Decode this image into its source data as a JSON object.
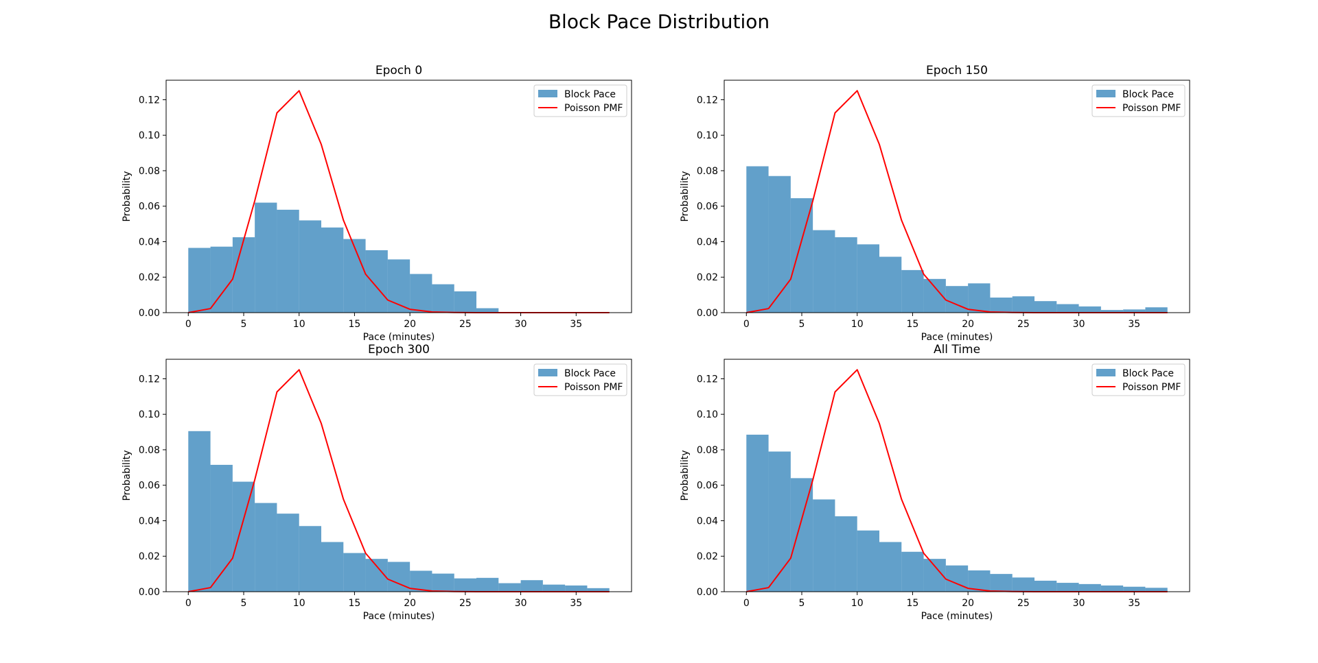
{
  "figure": {
    "title": "Block Pace Distribution"
  },
  "style": {
    "bar_color": "#1f77b4",
    "bar_alpha": 0.7,
    "line_color": "#ff0000",
    "background": "#ffffff",
    "axes_edge": "#000000"
  },
  "chart_data": [
    {
      "type": "bar",
      "title": "Epoch 0",
      "xlabel": "Pace (minutes)",
      "ylabel": "Probability",
      "xlim": [
        -2,
        40
      ],
      "ylim": [
        0,
        0.131
      ],
      "xticks": [
        0,
        5,
        10,
        15,
        20,
        25,
        30,
        35
      ],
      "yticks": [
        0.0,
        0.02,
        0.04,
        0.06,
        0.08,
        0.1,
        0.12
      ],
      "grid": false,
      "legend_position": "top-right",
      "bin_edges": [
        0,
        2,
        4,
        6,
        8,
        10,
        12,
        14,
        16,
        18,
        20,
        22,
        24,
        26,
        28,
        30,
        32,
        34,
        36,
        38
      ],
      "series": [
        {
          "name": "Block Pace",
          "kind": "histogram",
          "values": [
            0.0365,
            0.0372,
            0.0425,
            0.062,
            0.058,
            0.052,
            0.048,
            0.0415,
            0.0352,
            0.03,
            0.0218,
            0.016,
            0.012,
            0.0025,
            0.0003,
            0.0002,
            0.0001,
            0.0,
            0.0
          ]
        },
        {
          "name": "Poisson PMF",
          "kind": "line",
          "x": [
            0,
            2,
            4,
            6,
            8,
            10,
            12,
            14,
            16,
            18,
            20,
            22,
            24,
            26,
            28,
            30,
            32,
            34,
            36,
            38
          ],
          "values": [
            0.0,
            0.0023,
            0.0189,
            0.0631,
            0.1126,
            0.1251,
            0.0948,
            0.0521,
            0.0217,
            0.0071,
            0.0019,
            0.0004,
            0.0001,
            0.0,
            0.0,
            0.0,
            0.0,
            0.0,
            0.0,
            0.0
          ]
        }
      ]
    },
    {
      "type": "bar",
      "title": "Epoch 150",
      "xlabel": "Pace (minutes)",
      "ylabel": "Probability",
      "xlim": [
        -2,
        40
      ],
      "ylim": [
        0,
        0.131
      ],
      "xticks": [
        0,
        5,
        10,
        15,
        20,
        25,
        30,
        35
      ],
      "yticks": [
        0.0,
        0.02,
        0.04,
        0.06,
        0.08,
        0.1,
        0.12
      ],
      "grid": false,
      "legend_position": "top-right",
      "bin_edges": [
        0,
        2,
        4,
        6,
        8,
        10,
        12,
        14,
        16,
        18,
        20,
        22,
        24,
        26,
        28,
        30,
        32,
        34,
        36,
        38
      ],
      "series": [
        {
          "name": "Block Pace",
          "kind": "histogram",
          "values": [
            0.0825,
            0.077,
            0.0645,
            0.0465,
            0.0425,
            0.0385,
            0.0315,
            0.024,
            0.019,
            0.015,
            0.0165,
            0.0085,
            0.0092,
            0.0065,
            0.0048,
            0.0035,
            0.0015,
            0.0018,
            0.003
          ]
        },
        {
          "name": "Poisson PMF",
          "kind": "line",
          "x": [
            0,
            2,
            4,
            6,
            8,
            10,
            12,
            14,
            16,
            18,
            20,
            22,
            24,
            26,
            28,
            30,
            32,
            34,
            36,
            38
          ],
          "values": [
            0.0,
            0.0023,
            0.0189,
            0.0631,
            0.1126,
            0.1251,
            0.0948,
            0.0521,
            0.0217,
            0.0071,
            0.0019,
            0.0004,
            0.0001,
            0.0,
            0.0,
            0.0,
            0.0,
            0.0,
            0.0,
            0.0
          ]
        }
      ]
    },
    {
      "type": "bar",
      "title": "Epoch 300",
      "xlabel": "Pace (minutes)",
      "ylabel": "Probability",
      "xlim": [
        -2,
        40
      ],
      "ylim": [
        0,
        0.131
      ],
      "xticks": [
        0,
        5,
        10,
        15,
        20,
        25,
        30,
        35
      ],
      "yticks": [
        0.0,
        0.02,
        0.04,
        0.06,
        0.08,
        0.1,
        0.12
      ],
      "grid": false,
      "legend_position": "top-right",
      "bin_edges": [
        0,
        2,
        4,
        6,
        8,
        10,
        12,
        14,
        16,
        18,
        20,
        22,
        24,
        26,
        28,
        30,
        32,
        34,
        36,
        38
      ],
      "series": [
        {
          "name": "Block Pace",
          "kind": "histogram",
          "values": [
            0.0905,
            0.0715,
            0.062,
            0.05,
            0.044,
            0.037,
            0.028,
            0.0218,
            0.0185,
            0.0168,
            0.0118,
            0.0102,
            0.0075,
            0.0078,
            0.0048,
            0.0065,
            0.004,
            0.0035,
            0.002
          ]
        },
        {
          "name": "Poisson PMF",
          "kind": "line",
          "x": [
            0,
            2,
            4,
            6,
            8,
            10,
            12,
            14,
            16,
            18,
            20,
            22,
            24,
            26,
            28,
            30,
            32,
            34,
            36,
            38
          ],
          "values": [
            0.0,
            0.0023,
            0.0189,
            0.0631,
            0.1126,
            0.1251,
            0.0948,
            0.0521,
            0.0217,
            0.0071,
            0.0019,
            0.0004,
            0.0001,
            0.0,
            0.0,
            0.0,
            0.0,
            0.0,
            0.0,
            0.0
          ]
        }
      ]
    },
    {
      "type": "bar",
      "title": "All Time",
      "xlabel": "Pace (minutes)",
      "ylabel": "Probability",
      "xlim": [
        -2,
        40
      ],
      "ylim": [
        0,
        0.131
      ],
      "xticks": [
        0,
        5,
        10,
        15,
        20,
        25,
        30,
        35
      ],
      "yticks": [
        0.0,
        0.02,
        0.04,
        0.06,
        0.08,
        0.1,
        0.12
      ],
      "grid": false,
      "legend_position": "top-right",
      "bin_edges": [
        0,
        2,
        4,
        6,
        8,
        10,
        12,
        14,
        16,
        18,
        20,
        22,
        24,
        26,
        28,
        30,
        32,
        34,
        36,
        38
      ],
      "series": [
        {
          "name": "Block Pace",
          "kind": "histogram",
          "values": [
            0.0885,
            0.079,
            0.064,
            0.052,
            0.0425,
            0.0345,
            0.028,
            0.0225,
            0.0185,
            0.0148,
            0.012,
            0.01,
            0.008,
            0.0062,
            0.005,
            0.0043,
            0.0035,
            0.0028,
            0.0022
          ]
        },
        {
          "name": "Poisson PMF",
          "kind": "line",
          "x": [
            0,
            2,
            4,
            6,
            8,
            10,
            12,
            14,
            16,
            18,
            20,
            22,
            24,
            26,
            28,
            30,
            32,
            34,
            36,
            38
          ],
          "values": [
            0.0,
            0.0023,
            0.0189,
            0.0631,
            0.1126,
            0.1251,
            0.0948,
            0.0521,
            0.0217,
            0.0071,
            0.0019,
            0.0004,
            0.0001,
            0.0,
            0.0,
            0.0,
            0.0,
            0.0,
            0.0,
            0.0
          ]
        }
      ]
    }
  ]
}
